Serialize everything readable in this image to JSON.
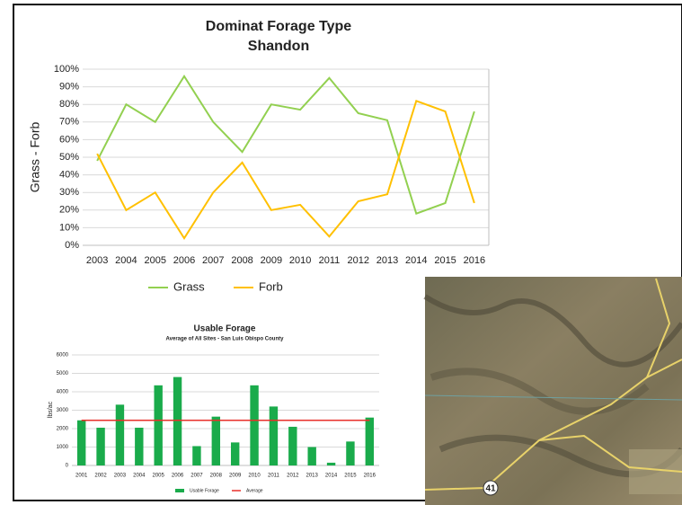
{
  "chart_data": [
    {
      "type": "line",
      "title": "Dominat Forage Type",
      "subtitle": "Shandon",
      "y_label": "Grass - Forb",
      "categories": [
        "2003",
        "2004",
        "2005",
        "2006",
        "2007",
        "2008",
        "2009",
        "2010",
        "2011",
        "2012",
        "2013",
        "2014",
        "2015",
        "2016"
      ],
      "series": [
        {
          "name": "Grass",
          "color": "#92d050",
          "values": [
            48,
            80,
            70,
            96,
            70,
            53,
            80,
            77,
            95,
            75,
            71,
            18,
            24,
            76
          ]
        },
        {
          "name": "Forb",
          "color": "#ffc000",
          "values": [
            52,
            20,
            30,
            4,
            30,
            47,
            20,
            23,
            5,
            25,
            29,
            82,
            76,
            24
          ]
        }
      ],
      "ylim": [
        0,
        100
      ],
      "yticks": [
        {
          "value": 0,
          "label": "0%"
        },
        {
          "value": 10,
          "label": "10%"
        },
        {
          "value": 20,
          "label": "20%"
        },
        {
          "value": 30,
          "label": "30%"
        },
        {
          "value": 40,
          "label": "40%"
        },
        {
          "value": 50,
          "label": "50%"
        },
        {
          "value": 60,
          "label": "60%"
        },
        {
          "value": 70,
          "label": "70%"
        },
        {
          "value": 80,
          "label": "80%"
        },
        {
          "value": 90,
          "label": "90%"
        },
        {
          "value": 100,
          "label": "100%"
        }
      ],
      "grid": true
    },
    {
      "type": "bar",
      "title": "Usable Forage",
      "subtitle": "Average of All Sites - San Luis Obispo County",
      "y_label": "lbs/ac",
      "categories": [
        "2001",
        "2002",
        "2003",
        "2004",
        "2005",
        "2006",
        "2007",
        "2008",
        "2009",
        "2010",
        "2011",
        "2012",
        "2013",
        "2014",
        "2015",
        "2016"
      ],
      "series": [
        {
          "name": "Usable Forage",
          "color": "#1aab4b",
          "type": "bar",
          "values": [
            2450,
            2050,
            3300,
            2050,
            4350,
            4800,
            1050,
            2650,
            1250,
            4350,
            3200,
            2100,
            1000,
            150,
            1300,
            2600
          ]
        },
        {
          "name": "Average",
          "color": "#e8302a",
          "type": "line",
          "values": [
            2450,
            2450,
            2450,
            2450,
            2450,
            2450,
            2450,
            2450,
            2450,
            2450,
            2450,
            2450,
            2450,
            2450,
            2450,
            2450
          ]
        }
      ],
      "ylim": [
        0,
        6000
      ],
      "yticks": [
        0,
        1000,
        2000,
        3000,
        4000,
        5000,
        6000
      ],
      "grid": true
    }
  ],
  "image": {
    "route_label": "41"
  }
}
